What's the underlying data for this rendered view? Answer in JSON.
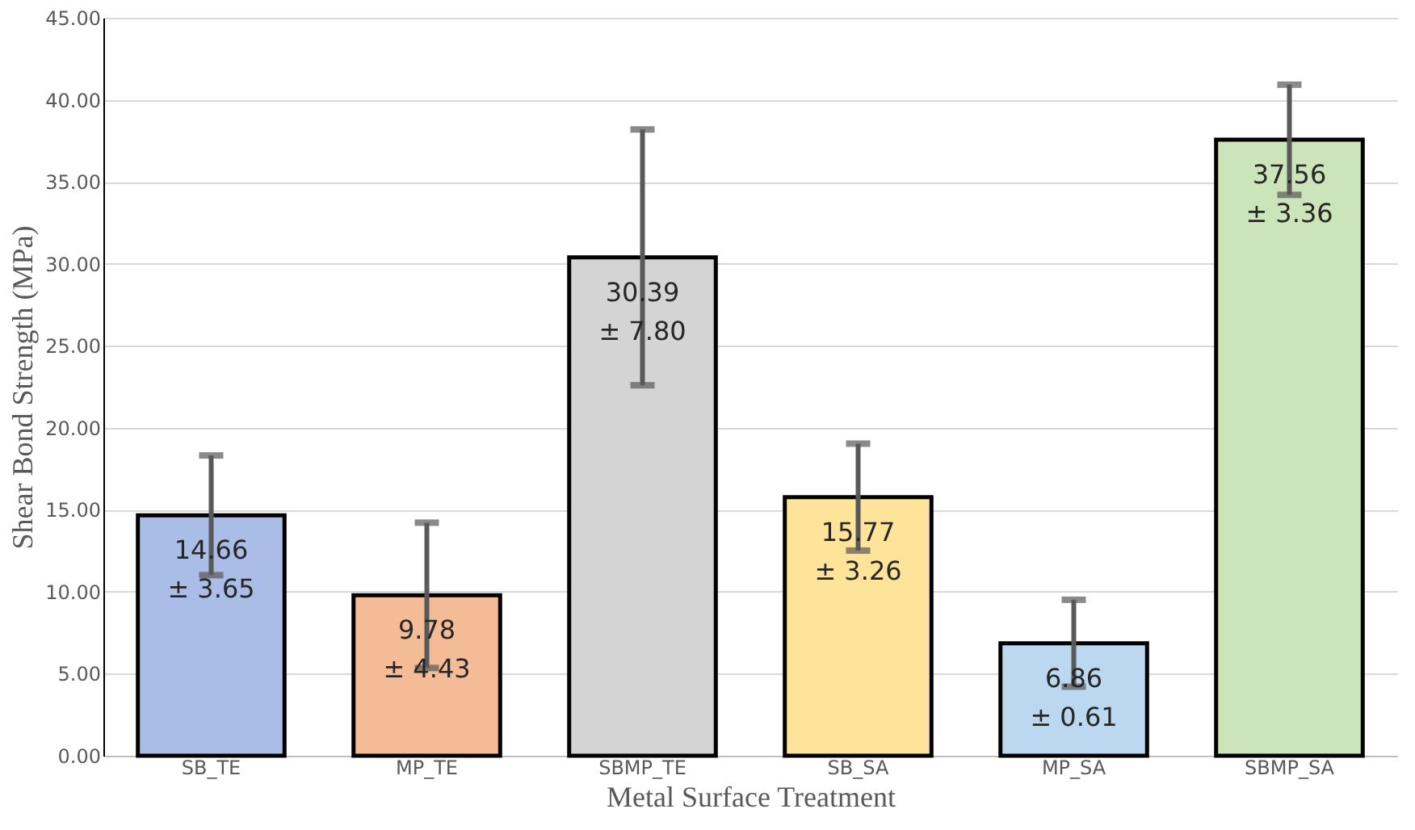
{
  "chart_data": {
    "type": "bar",
    "xlabel": "Metal Surface Treatment",
    "ylabel": "Shear Bond Strength (MPa)",
    "categories": [
      "SB_TE",
      "MP_TE",
      "SBMP_TE",
      "SB_SA",
      "MP_SA",
      "SBMP_SA"
    ],
    "values": [
      14.66,
      9.78,
      30.39,
      15.77,
      6.86,
      37.56
    ],
    "colors": [
      "#a9bde6",
      "#f4bc96",
      "#d4d4d4",
      "#fde49a",
      "#bcd8f0",
      "#cbe4ba"
    ],
    "errors": [
      3.65,
      4.43,
      7.8,
      3.26,
      2.65,
      3.36
    ],
    "value_labels": [
      "14.66\n± 3.65",
      "9.78\n± 4.43",
      "30.39\n± 7.80",
      "15.77\n± 3.26",
      "6.86\n± 0.61",
      "37.56\n± 3.36"
    ],
    "ylim": [
      0,
      45
    ],
    "yticks": [
      {
        "value": 0,
        "label": "0.00"
      },
      {
        "value": 5,
        "label": "5.00"
      },
      {
        "value": 10,
        "label": "10.00"
      },
      {
        "value": 15,
        "label": "15.00"
      },
      {
        "value": 20,
        "label": "20.00"
      },
      {
        "value": 25,
        "label": "25.00"
      },
      {
        "value": 30,
        "label": "30.00"
      },
      {
        "value": 35,
        "label": "35.00"
      },
      {
        "value": 40,
        "label": "40.00"
      },
      {
        "value": 45,
        "label": "45.00"
      }
    ],
    "grid": "y",
    "legend": false
  }
}
